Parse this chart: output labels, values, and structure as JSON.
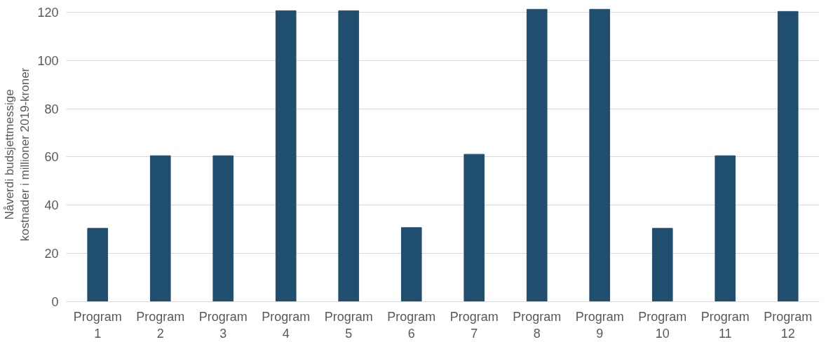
{
  "chart_data": {
    "type": "bar",
    "ylabel": "Nåverdi budsjettmessige kostnader i millioner 2019-kroner",
    "categories": [
      "Program 1",
      "Program 2",
      "Program 3",
      "Program 4",
      "Program 5",
      "Program 6",
      "Program 7",
      "Program 8",
      "Program 9",
      "Program 10",
      "Program 11",
      "Program 12"
    ],
    "values": [
      30.4,
      60.5,
      60.5,
      120.6,
      120.6,
      30.7,
      61.1,
      121.2,
      121.2,
      30.4,
      60.5,
      120.3
    ],
    "color": "#204e6e",
    "ylim": [
      0,
      122
    ],
    "yticks": [
      0,
      20,
      40,
      60,
      80,
      100,
      120
    ],
    "grid": "y"
  }
}
